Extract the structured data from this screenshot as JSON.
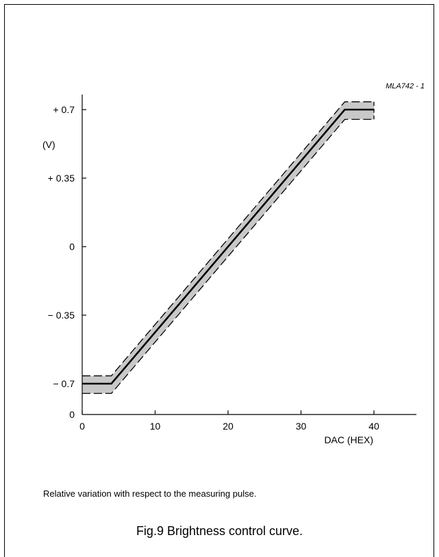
{
  "chart_data": {
    "type": "line",
    "id_label": "MLA742 - 1",
    "xlabel": "DAC (HEX)",
    "ylabel": "(V)",
    "xlim": [
      0,
      46
    ],
    "ylim": [
      -0.85,
      0.78
    ],
    "x_ticks": [
      0,
      10,
      20,
      30,
      40
    ],
    "x_tick_labels": [
      "0",
      "10",
      "20",
      "30",
      "40"
    ],
    "y_ticks": [
      0.7,
      0.35,
      0,
      -0.35,
      -0.7
    ],
    "y_tick_labels": [
      "+ 0.7",
      "+ 0.35",
      "0",
      "− 0.35",
      "− 0.7"
    ],
    "y_origin_label": "0",
    "series": [
      {
        "role": "nominal",
        "x": [
          0,
          4,
          36,
          40
        ],
        "y": [
          -0.7,
          -0.7,
          0.7,
          0.7
        ]
      },
      {
        "role": "upper-tolerance",
        "x": [
          0,
          4,
          36,
          40
        ],
        "y": [
          -0.66,
          -0.66,
          0.74,
          0.74
        ]
      },
      {
        "role": "lower-tolerance",
        "x": [
          0,
          4,
          36,
          40
        ],
        "y": [
          -0.75,
          -0.75,
          0.65,
          0.65
        ]
      }
    ],
    "grid": false,
    "colors": {
      "band": "#c8c8c8",
      "line": "#000000"
    }
  },
  "note": "Relative variation with respect to the measuring pulse.",
  "caption": "Fig.9  Brightness control curve."
}
